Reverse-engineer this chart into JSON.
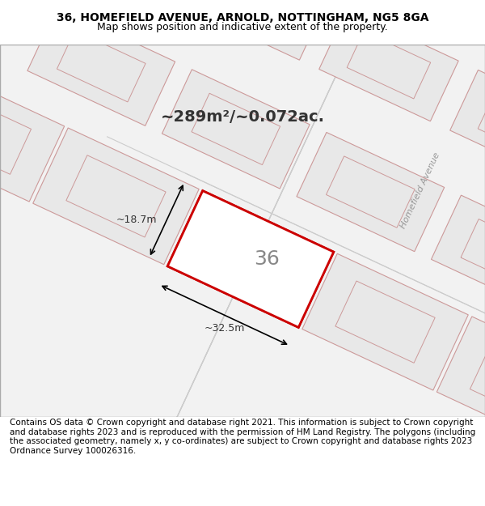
{
  "title_line1": "36, HOMEFIELD AVENUE, ARNOLD, NOTTINGHAM, NG5 8GA",
  "title_line2": "Map shows position and indicative extent of the property.",
  "footer_text": "Contains OS data © Crown copyright and database right 2021. This information is subject to Crown copyright and database rights 2023 and is reproduced with the permission of HM Land Registry. The polygons (including the associated geometry, namely x, y co-ordinates) are subject to Crown copyright and database rights 2023 Ordnance Survey 100026316.",
  "area_label": "~289m²/~0.072ac.",
  "plot_number": "36",
  "dim_width": "~32.5m",
  "dim_height": "~18.7m",
  "map_bg": "#f2f2f2",
  "map_border": "#cccccc",
  "plot_fill": "#ffffff",
  "plot_stroke": "#cc0000",
  "neighbor_fill": "#e8e8e8",
  "neighbor_stroke": "#cc9999",
  "road_color": "#e0e0e0",
  "street_label": "Homefield Avenue",
  "title_fontsize": 10,
  "subtitle_fontsize": 9,
  "footer_fontsize": 7.5
}
